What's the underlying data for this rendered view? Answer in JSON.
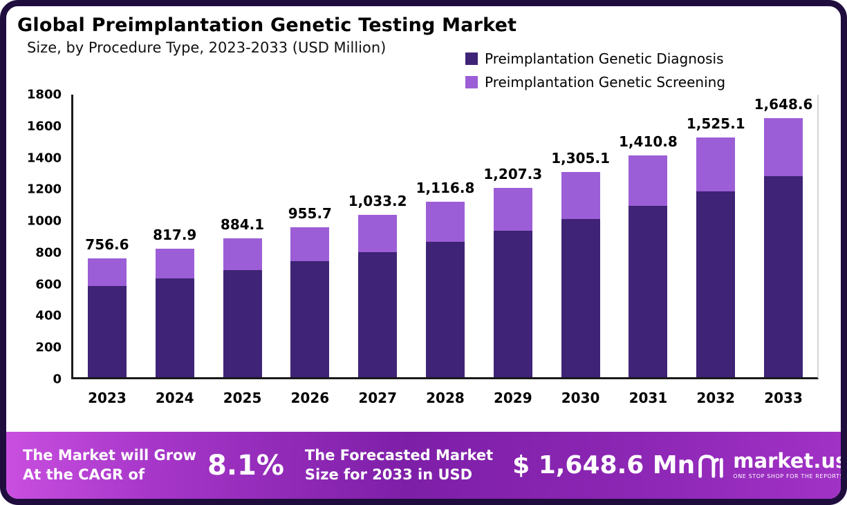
{
  "title": "Global Preimplantation Genetic Testing Market",
  "subtitle": "Size, by Procedure Type, 2023-2033 (USD Million)",
  "chart_data": {
    "type": "bar",
    "stacked": true,
    "title": "Global Preimplantation Genetic Testing Market",
    "subtitle": "Size, by Procedure Type, 2023-2033 (USD Million)",
    "categories": [
      "2023",
      "2024",
      "2025",
      "2026",
      "2027",
      "2028",
      "2029",
      "2030",
      "2031",
      "2032",
      "2033"
    ],
    "series": [
      {
        "name": "Preimplantation Genetic Diagnosis",
        "color": "#3f2376",
        "values": [
          583.0,
          630.0,
          681.0,
          738.0,
          797.0,
          862.0,
          933.0,
          1008.0,
          1093.0,
          1183.0,
          1280.0
        ]
      },
      {
        "name": "Preimplantation Genetic Screening",
        "color": "#9c5ed6",
        "values": [
          173.6,
          187.9,
          203.1,
          217.7,
          236.2,
          254.8,
          274.3,
          297.1,
          317.8,
          342.1,
          368.6
        ]
      }
    ],
    "totals": [
      756.6,
      817.9,
      884.1,
      955.7,
      1033.2,
      1116.8,
      1207.3,
      1305.1,
      1410.8,
      1525.1,
      1648.6
    ],
    "total_labels": [
      "756.6",
      "817.9",
      "884.1",
      "955.7",
      "1,033.2",
      "1,116.8",
      "1,207.3",
      "1,305.1",
      "1,410.8",
      "1,525.1",
      "1,648.6"
    ],
    "ylim": [
      0,
      1800
    ],
    "ytick_step": 200,
    "grid": false,
    "legend_position": "top-right"
  },
  "footer": {
    "left_line1": "The Market will Grow",
    "left_line2": "At the CAGR of",
    "cagr": "8.1%",
    "mid_line1": "The Forecasted Market",
    "mid_line2": "Size for 2033 in USD",
    "forecast_value": "$ 1,648.6 Mn",
    "brand": "market.us",
    "brand_tagline": "ONE STOP SHOP FOR THE REPORTS"
  },
  "colors": {
    "diagnosis": "#3f2376",
    "screening": "#9c5ed6",
    "frame_border": "#1f0d3e",
    "banner_gradient_left": "#c94fe0",
    "banner_gradient_mid": "#7e1fa8",
    "banner_gradient_right": "#a132c6",
    "banner_text": "#ffffff",
    "chart_text": "#000000"
  }
}
